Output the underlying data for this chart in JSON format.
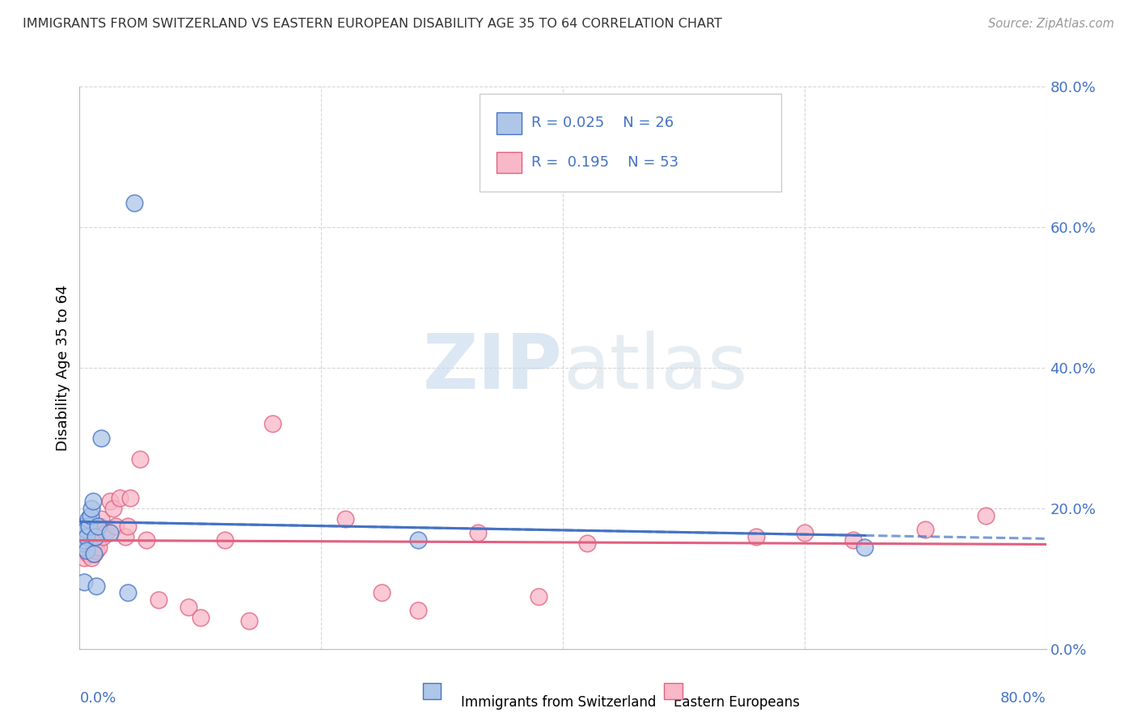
{
  "title": "IMMIGRANTS FROM SWITZERLAND VS EASTERN EUROPEAN DISABILITY AGE 35 TO 64 CORRELATION CHART",
  "source": "Source: ZipAtlas.com",
  "ylabel": "Disability Age 35 to 64",
  "ytick_labels": [
    "0.0%",
    "20.0%",
    "40.0%",
    "60.0%",
    "80.0%"
  ],
  "ytick_values": [
    0.0,
    0.2,
    0.4,
    0.6,
    0.8
  ],
  "xlim": [
    0.0,
    0.8
  ],
  "ylim": [
    0.0,
    0.8
  ],
  "legend_label1": "Immigrants from Switzerland",
  "legend_label2": "Eastern Europeans",
  "watermark_zip": "ZIP",
  "watermark_atlas": "atlas",
  "blue_fill": "#aec6e8",
  "blue_edge": "#4472c4",
  "blue_line": "#4472c4",
  "blue_dash": "#6090d0",
  "pink_fill": "#f9b8c8",
  "pink_edge": "#e06080",
  "pink_line": "#e06080",
  "title_color": "#333333",
  "axis_color": "#4472c4",
  "legend_text_color": "#4472c4",
  "grid_color": "#cccccc",
  "swiss_x": [
    0.001,
    0.001,
    0.002,
    0.002,
    0.003,
    0.003,
    0.004,
    0.004,
    0.005,
    0.006,
    0.006,
    0.007,
    0.008,
    0.009,
    0.01,
    0.011,
    0.012,
    0.013,
    0.014,
    0.015,
    0.018,
    0.025,
    0.04,
    0.045,
    0.28,
    0.65
  ],
  "swiss_y": [
    0.155,
    0.16,
    0.145,
    0.165,
    0.15,
    0.175,
    0.155,
    0.095,
    0.17,
    0.16,
    0.14,
    0.185,
    0.175,
    0.19,
    0.2,
    0.21,
    0.135,
    0.16,
    0.09,
    0.175,
    0.3,
    0.165,
    0.08,
    0.635,
    0.155,
    0.145
  ],
  "eastern_x": [
    0.001,
    0.002,
    0.002,
    0.003,
    0.003,
    0.004,
    0.005,
    0.005,
    0.006,
    0.007,
    0.007,
    0.008,
    0.009,
    0.01,
    0.01,
    0.011,
    0.012,
    0.012,
    0.013,
    0.014,
    0.015,
    0.016,
    0.017,
    0.018,
    0.019,
    0.02,
    0.022,
    0.025,
    0.028,
    0.03,
    0.033,
    0.038,
    0.04,
    0.042,
    0.05,
    0.055,
    0.065,
    0.09,
    0.1,
    0.12,
    0.14,
    0.16,
    0.22,
    0.25,
    0.28,
    0.33,
    0.38,
    0.42,
    0.56,
    0.6,
    0.64,
    0.7,
    0.75
  ],
  "eastern_y": [
    0.155,
    0.145,
    0.16,
    0.14,
    0.165,
    0.13,
    0.15,
    0.17,
    0.145,
    0.135,
    0.155,
    0.16,
    0.14,
    0.13,
    0.145,
    0.155,
    0.135,
    0.165,
    0.15,
    0.14,
    0.155,
    0.145,
    0.175,
    0.185,
    0.16,
    0.17,
    0.165,
    0.21,
    0.2,
    0.175,
    0.215,
    0.16,
    0.175,
    0.215,
    0.27,
    0.155,
    0.07,
    0.06,
    0.045,
    0.155,
    0.04,
    0.32,
    0.185,
    0.08,
    0.055,
    0.165,
    0.075,
    0.15,
    0.16,
    0.165,
    0.155,
    0.17,
    0.19
  ],
  "swiss_trend_x": [
    0.0,
    0.8
  ],
  "swiss_trend_y_start": 0.178,
  "swiss_trend_y_end": 0.178,
  "eastern_trend_x": [
    0.0,
    0.8
  ],
  "eastern_trend_y_start": 0.158,
  "eastern_trend_y_end": 0.178
}
